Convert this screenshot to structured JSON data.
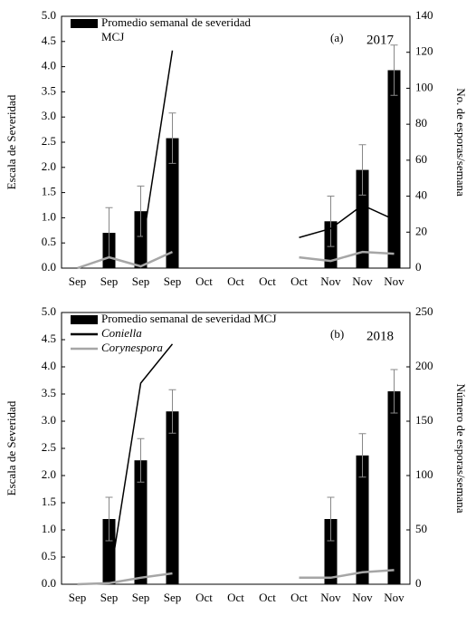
{
  "chart_data": [
    {
      "type": "bar",
      "annotations": [
        "(a)",
        "2017"
      ],
      "y_label": "Escala de Severidad",
      "y2_label": "No. de esporas/semana",
      "categories": [
        "Sep",
        "Sep",
        "Sep",
        "Sep",
        "Oct",
        "Oct",
        "Oct",
        "Oct",
        "Nov",
        "Nov",
        "Nov"
      ],
      "ylim": [
        0,
        5
      ],
      "yticks": [
        {
          "value": 0,
          "label": "0.0"
        },
        {
          "value": 0.5,
          "label": "0.5"
        },
        {
          "value": 1,
          "label": "1.0"
        },
        {
          "value": 1.5,
          "label": "1.5"
        },
        {
          "value": 2,
          "label": "2.0"
        },
        {
          "value": 2.5,
          "label": "2.5"
        },
        {
          "value": 3,
          "label": "3.0"
        },
        {
          "value": 3.5,
          "label": "3.5"
        },
        {
          "value": 4,
          "label": "4.0"
        },
        {
          "value": 4.5,
          "label": "4.5"
        },
        {
          "value": 5,
          "label": "5.0"
        }
      ],
      "y2lim": [
        0,
        140
      ],
      "y2ticks": [
        0,
        20,
        40,
        60,
        80,
        100,
        120,
        140
      ],
      "series": [
        {
          "name": "Promedio semanal de severidad MCJ",
          "type": "bar",
          "color": "#000000",
          "values": [
            null,
            0.7,
            1.13,
            2.58,
            null,
            null,
            null,
            null,
            0.93,
            1.95,
            3.93
          ],
          "errors": [
            null,
            0.5,
            0.5,
            0.5,
            null,
            null,
            null,
            null,
            0.5,
            0.5,
            0.5
          ]
        },
        {
          "type": "line",
          "axis": "y2",
          "color": "#000000",
          "values": [
            null,
            null,
            7,
            121,
            null,
            null,
            null,
            17,
            22,
            35,
            27
          ]
        },
        {
          "type": "line",
          "axis": "y2",
          "color": "#a6a6a6",
          "values": [
            0,
            6,
            1,
            9,
            null,
            null,
            null,
            6,
            4,
            9,
            8
          ]
        }
      ]
    },
    {
      "type": "bar",
      "annotations": [
        "(b)",
        "2018"
      ],
      "y_label": "Escala de Severidad",
      "y2_label": "Número de esporas/semana",
      "categories": [
        "Sep",
        "Sep",
        "Sep",
        "Sep",
        "Oct",
        "Oct",
        "Oct",
        "Oct",
        "Nov",
        "Nov",
        "Nov"
      ],
      "ylim": [
        0,
        5
      ],
      "yticks": [
        {
          "value": 0,
          "label": "0.0"
        },
        {
          "value": 0.5,
          "label": "0.5"
        },
        {
          "value": 1,
          "label": "1.0"
        },
        {
          "value": 1.5,
          "label": "1.5"
        },
        {
          "value": 2,
          "label": "2.0"
        },
        {
          "value": 2.5,
          "label": "2.5"
        },
        {
          "value": 3,
          "label": "3.0"
        },
        {
          "value": 3.5,
          "label": "3.5"
        },
        {
          "value": 4,
          "label": "4.0"
        },
        {
          "value": 4.5,
          "label": "4.5"
        },
        {
          "value": 5,
          "label": "5.0"
        }
      ],
      "y2lim": [
        0,
        250
      ],
      "y2ticks": [
        0,
        50,
        100,
        150,
        200,
        250
      ],
      "series": [
        {
          "name": "Promedio semanal de severidad MCJ",
          "type": "bar",
          "color": "#000000",
          "values": [
            null,
            1.2,
            2.28,
            3.18,
            null,
            null,
            null,
            null,
            1.2,
            2.37,
            3.55
          ],
          "errors": [
            null,
            0.4,
            0.4,
            0.4,
            null,
            null,
            null,
            null,
            0.4,
            0.4,
            0.4
          ]
        },
        {
          "name": "Coniella",
          "type": "line",
          "axis": "y2",
          "color": "#000000",
          "values": [
            null,
            0,
            185,
            221,
            null,
            null,
            null,
            null,
            null,
            null,
            null
          ]
        },
        {
          "name": "Corynespora",
          "type": "line",
          "axis": "y2",
          "color": "#a6a6a6",
          "values": [
            0,
            1,
            6,
            10,
            null,
            null,
            null,
            6,
            6,
            11,
            13
          ]
        }
      ]
    }
  ]
}
